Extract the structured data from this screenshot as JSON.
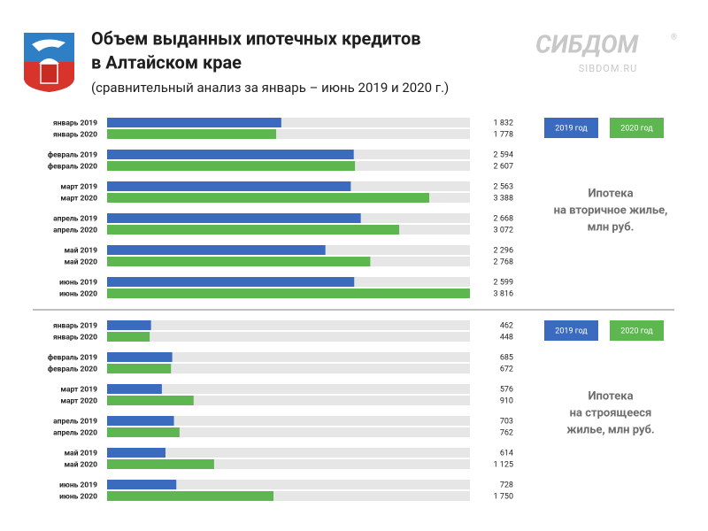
{
  "header": {
    "title_lines": [
      "Объем выданных ипотечных  кредитов",
      "в Алтайском крае"
    ],
    "subtitle": "(сравнительный анализ за январь – июнь 2019 и 2020 г.)",
    "logo": "СИБДОМ",
    "logo_mark": "®",
    "site": "SIBDOM.RU"
  },
  "chart_data": [
    {
      "type": "bar",
      "orientation": "horizontal",
      "xlim": [
        0,
        3816
      ],
      "annotation_lines": [
        "Ипотека",
        "на вторичное жилье,",
        "млн руб."
      ],
      "series": [
        {
          "name": "2019 год",
          "color": "#3a6bbf",
          "labels": [
            "январь 2019",
            "февраль 2019",
            "март 2019",
            "апрель 2019",
            "май 2019",
            "июнь 2019"
          ],
          "values": [
            1832,
            2594,
            2563,
            2668,
            2296,
            2599
          ],
          "value_labels": [
            "1 832",
            "2 594",
            "2 563",
            "2 668",
            "2 296",
            "2 599"
          ]
        },
        {
          "name": "2020 год",
          "color": "#5db64f",
          "labels": [
            "январь 2020",
            "февраль 2020",
            "март 2020",
            "апрель 2020",
            "май 2020",
            "июнь 2020"
          ],
          "values": [
            1778,
            2607,
            3388,
            3072,
            2768,
            3816
          ],
          "value_labels": [
            "1 778",
            "2 607",
            "3 388",
            "3 072",
            "2 768",
            "3 816"
          ]
        }
      ]
    },
    {
      "type": "bar",
      "orientation": "horizontal",
      "xlim": [
        0,
        3816
      ],
      "annotation_lines": [
        "Ипотека",
        "на строящееся",
        "жилье, млн руб."
      ],
      "series": [
        {
          "name": "2019 год",
          "color": "#3a6bbf",
          "labels": [
            "январь 2019",
            "февраль 2019",
            "март 2019",
            "апрель 2019",
            "май 2019",
            "июнь 2019"
          ],
          "values": [
            462,
            685,
            576,
            703,
            614,
            728
          ],
          "value_labels": [
            "462",
            "685",
            "576",
            "703",
            "614",
            "728"
          ]
        },
        {
          "name": "2020 год",
          "color": "#5db64f",
          "labels": [
            "январь 2020",
            "февраль 2020",
            "март 2020",
            "апрель 2020",
            "май 2020",
            "июнь 2020"
          ],
          "values": [
            448,
            672,
            910,
            762,
            1125,
            1750
          ],
          "value_labels": [
            "448",
            "672",
            "910",
            "762",
            "1 125",
            "1 750"
          ]
        }
      ]
    }
  ]
}
